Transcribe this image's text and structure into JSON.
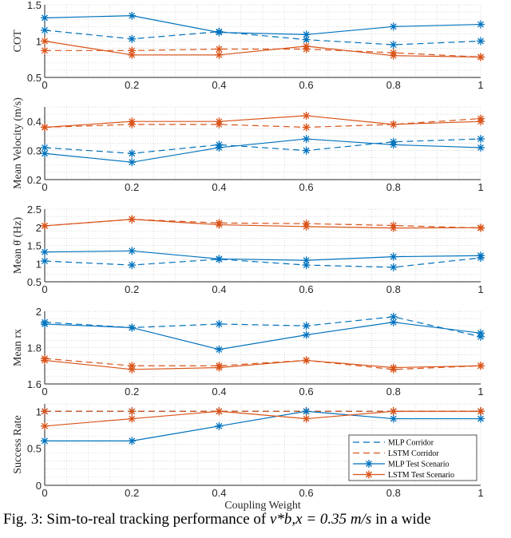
{
  "colors": {
    "mlp": "#0072BD",
    "lstm": "#D95319"
  },
  "xlabel": "Coupling Weight",
  "legend": {
    "placement": "inside-bottom-right",
    "entries": [
      "MLP Corridor",
      "LSTM Corridor",
      "MLP Test Scenario",
      "LSTM Test Scenario"
    ]
  },
  "caption": {
    "prefix": "Fig. 3: Sim-to-real tracking performance of ",
    "math": "v*b,x = 0.35 m/s",
    "suffix": " in a wide"
  },
  "chart_data": [
    {
      "type": "line",
      "ylabel": "COT",
      "x": [
        0,
        0.2,
        0.4,
        0.6,
        0.8,
        1
      ],
      "xlim": [
        0,
        1
      ],
      "ylim": [
        0.5,
        1.5
      ],
      "yticks": [
        0.5,
        1,
        1.5
      ],
      "grid": true,
      "series": [
        {
          "name": "MLP Corridor",
          "values": [
            1.15,
            1.03,
            1.13,
            1.02,
            0.95,
            1.0
          ]
        },
        {
          "name": "LSTM Corridor",
          "values": [
            0.87,
            0.87,
            0.89,
            0.89,
            0.84,
            0.78
          ]
        },
        {
          "name": "MLP Test Scenario",
          "values": [
            1.32,
            1.35,
            1.12,
            1.09,
            1.2,
            1.23
          ]
        },
        {
          "name": "LSTM Test Scenario",
          "values": [
            1.0,
            0.81,
            0.81,
            0.93,
            0.8,
            0.78
          ]
        }
      ]
    },
    {
      "type": "line",
      "ylabel": "Mean Velocity (m/s)",
      "x": [
        0,
        0.2,
        0.4,
        0.6,
        0.8,
        1
      ],
      "xlim": [
        0,
        1
      ],
      "ylim": [
        0.2,
        0.45
      ],
      "yticks": [
        0.2,
        0.3,
        0.4
      ],
      "grid": true,
      "series": [
        {
          "name": "MLP Corridor",
          "values": [
            0.31,
            0.29,
            0.32,
            0.3,
            0.33,
            0.34
          ]
        },
        {
          "name": "LSTM Corridor",
          "values": [
            0.38,
            0.39,
            0.39,
            0.38,
            0.39,
            0.41
          ]
        },
        {
          "name": "MLP Test Scenario",
          "values": [
            0.29,
            0.26,
            0.31,
            0.34,
            0.32,
            0.31
          ]
        },
        {
          "name": "LSTM Test Scenario",
          "values": [
            0.38,
            0.4,
            0.4,
            0.42,
            0.39,
            0.4
          ]
        }
      ]
    },
    {
      "type": "line",
      "ylabel": "Mean θ̇ (Hz)",
      "x": [
        0,
        0.2,
        0.4,
        0.6,
        0.8,
        1
      ],
      "xlim": [
        0,
        1
      ],
      "ylim": [
        0.5,
        2.5
      ],
      "yticks": [
        0.5,
        1,
        1.5,
        2,
        2.5
      ],
      "grid": true,
      "series": [
        {
          "name": "MLP Corridor",
          "values": [
            1.07,
            0.96,
            1.12,
            0.96,
            0.9,
            1.16
          ]
        },
        {
          "name": "LSTM Corridor",
          "values": [
            2.04,
            2.22,
            2.12,
            2.1,
            2.05,
            1.98
          ]
        },
        {
          "name": "MLP Test Scenario",
          "values": [
            1.32,
            1.35,
            1.13,
            1.09,
            1.19,
            1.22
          ]
        },
        {
          "name": "LSTM Test Scenario",
          "values": [
            2.04,
            2.22,
            2.07,
            2.02,
            1.98,
            1.99
          ]
        }
      ]
    },
    {
      "type": "line",
      "ylabel": "Mean rx",
      "x": [
        0,
        0.2,
        0.4,
        0.6,
        0.8,
        1
      ],
      "xlim": [
        0,
        1
      ],
      "ylim": [
        1.6,
        2
      ],
      "yticks": [
        1.6,
        1.8,
        2
      ],
      "grid": true,
      "series": [
        {
          "name": "MLP Corridor",
          "values": [
            1.94,
            1.91,
            1.93,
            1.92,
            1.97,
            1.86
          ]
        },
        {
          "name": "LSTM Corridor",
          "values": [
            1.74,
            1.7,
            1.7,
            1.73,
            1.68,
            1.7
          ]
        },
        {
          "name": "MLP Test Scenario",
          "values": [
            1.93,
            1.91,
            1.79,
            1.87,
            1.94,
            1.88
          ]
        },
        {
          "name": "LSTM Test Scenario",
          "values": [
            1.73,
            1.68,
            1.69,
            1.73,
            1.69,
            1.7
          ]
        }
      ]
    },
    {
      "type": "line",
      "ylabel": "Success Rate",
      "x": [
        0,
        0.2,
        0.4,
        0.6,
        0.8,
        1
      ],
      "xlim": [
        0,
        1
      ],
      "ylim": [
        0,
        1.1
      ],
      "yticks": [
        0,
        0.5,
        1
      ],
      "grid": true,
      "series": [
        {
          "name": "MLP Corridor",
          "values": [
            1,
            1,
            1,
            1,
            1,
            1
          ]
        },
        {
          "name": "LSTM Corridor",
          "values": [
            1,
            1,
            1,
            1,
            1,
            1
          ]
        },
        {
          "name": "MLP Test Scenario",
          "values": [
            0.6,
            0.6,
            0.8,
            1.0,
            0.9,
            0.9
          ]
        },
        {
          "name": "LSTM Test Scenario",
          "values": [
            0.8,
            0.9,
            1.0,
            0.9,
            1.0,
            1.0
          ]
        }
      ]
    }
  ]
}
